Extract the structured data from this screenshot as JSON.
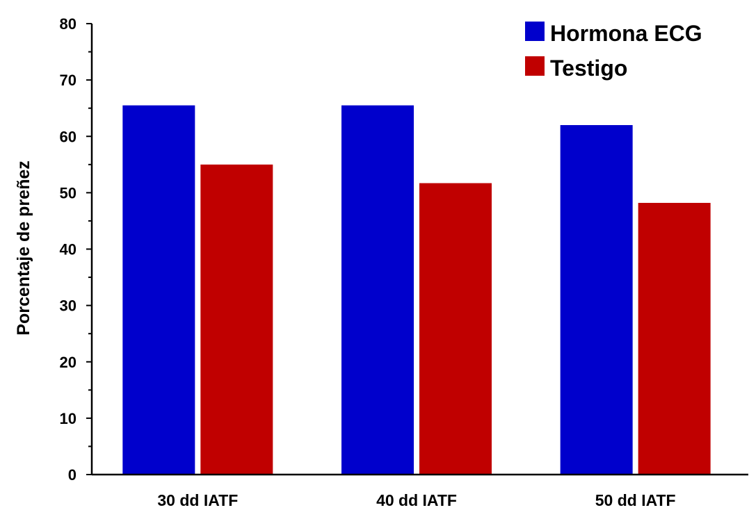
{
  "chart_data": {
    "type": "bar",
    "ylabel": "Porcentaje de preñez",
    "xlabel": "",
    "ylim": [
      0,
      80
    ],
    "yticks": [
      0,
      10,
      20,
      30,
      40,
      50,
      60,
      70,
      80
    ],
    "categories": [
      "30 dd IATF",
      "40 dd IATF",
      "50 dd IATF"
    ],
    "series": [
      {
        "name": "Hormona ECG",
        "color": "#0000cc",
        "values": [
          65.5,
          65.5,
          62
        ]
      },
      {
        "name": "Testigo",
        "color": "#c00000",
        "values": [
          55,
          51.7,
          48.2
        ]
      }
    ],
    "legend_position": "top-right",
    "grid": false
  }
}
